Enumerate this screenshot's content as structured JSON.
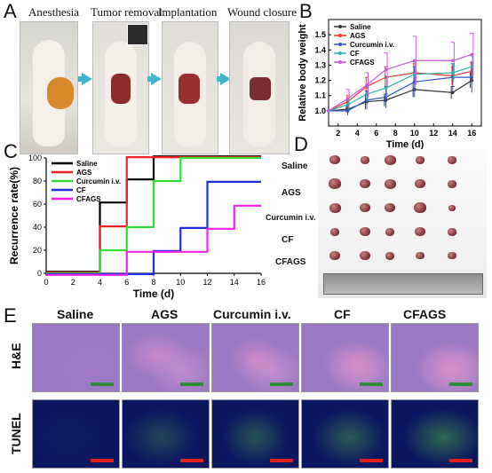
{
  "panels": {
    "a": "A",
    "b": "B",
    "c": "C",
    "d": "D",
    "e": "E"
  },
  "panel_a": {
    "steps": [
      "Anesthesia",
      "Tumor removal",
      "Implantation",
      "Wound closure"
    ]
  },
  "panel_d": {
    "rows": [
      "Saline",
      "AGS",
      "Curcumin i.v.",
      "CF",
      "CFAGS"
    ]
  },
  "panel_e": {
    "columns": [
      "Saline",
      "AGS",
      "Curcumin i.v.",
      "CF",
      "CFAGS"
    ],
    "rows": [
      "H&E",
      "TUNEL"
    ]
  },
  "chart_data": [
    {
      "type": "line",
      "xlabel": "Time (d)",
      "ylabel": "Relative body weight",
      "xlim": [
        1,
        17
      ],
      "ylim": [
        0.9,
        1.6
      ],
      "xticks": [
        2,
        4,
        6,
        8,
        10,
        12,
        14,
        16
      ],
      "yticks": [
        1.0,
        1.1,
        1.2,
        1.3,
        1.4,
        1.5
      ],
      "legend": "top-left",
      "x": [
        1,
        3,
        5,
        7,
        10,
        14,
        16
      ],
      "series": [
        {
          "name": "Saline",
          "color": "#333333",
          "values": [
            1.0,
            1.01,
            1.06,
            1.07,
            1.14,
            1.12,
            1.2
          ],
          "err": [
            0.0,
            0.02,
            0.05,
            0.04,
            0.05,
            0.04,
            0.05
          ]
        },
        {
          "name": "AGS",
          "color": "#e8392c",
          "values": [
            1.0,
            1.06,
            1.16,
            1.22,
            1.25,
            1.23,
            1.26
          ],
          "err": [
            0.0,
            0.04,
            0.06,
            0.07,
            0.06,
            0.06,
            0.06
          ]
        },
        {
          "name": "Curcumin i.v.",
          "color": "#2f56c8",
          "values": [
            1.0,
            1.0,
            1.07,
            1.09,
            1.19,
            1.22,
            1.22
          ],
          "err": [
            0.0,
            0.03,
            0.06,
            0.07,
            0.1,
            0.09,
            0.1
          ]
        },
        {
          "name": "CF",
          "color": "#2bb5a6",
          "values": [
            1.0,
            1.04,
            1.11,
            1.15,
            1.24,
            1.25,
            1.29
          ],
          "err": [
            0.0,
            0.03,
            0.05,
            0.07,
            0.08,
            0.06,
            0.07
          ]
        },
        {
          "name": "CFAGS",
          "color": "#c75bd8",
          "values": [
            1.0,
            1.08,
            1.17,
            1.27,
            1.33,
            1.33,
            1.37
          ],
          "err": [
            0.0,
            0.06,
            0.08,
            0.11,
            0.16,
            0.12,
            0.14
          ]
        }
      ]
    },
    {
      "type": "line",
      "step": true,
      "xlabel": "Time (d)",
      "ylabel": "Recurrence rate(%)",
      "xlim": [
        0,
        16
      ],
      "ylim": [
        0,
        100
      ],
      "xticks": [
        0,
        2,
        4,
        6,
        8,
        10,
        12,
        14,
        16
      ],
      "yticks": [
        0,
        20,
        40,
        60,
        80,
        100
      ],
      "legend": "top-left",
      "series": [
        {
          "name": "Saline",
          "color": "#000000",
          "points": [
            [
              0,
              0
            ],
            [
              4,
              0
            ],
            [
              4,
              60
            ],
            [
              6,
              60
            ],
            [
              6,
              80
            ],
            [
              8,
              80
            ],
            [
              8,
              100
            ],
            [
              16,
              100
            ]
          ]
        },
        {
          "name": "AGS",
          "color": "#ee2222",
          "points": [
            [
              0,
              0
            ],
            [
              4,
              0
            ],
            [
              4,
              40
            ],
            [
              6,
              40
            ],
            [
              6,
              100
            ],
            [
              16,
              100
            ]
          ]
        },
        {
          "name": "Curcumin i.v.",
          "color": "#33dd33",
          "points": [
            [
              0,
              0
            ],
            [
              4,
              0
            ],
            [
              4,
              20
            ],
            [
              6,
              20
            ],
            [
              6,
              40
            ],
            [
              8,
              40
            ],
            [
              8,
              80
            ],
            [
              10,
              80
            ],
            [
              10,
              100
            ],
            [
              16,
              100
            ]
          ]
        },
        {
          "name": "CF",
          "color": "#1f2fdd",
          "points": [
            [
              0,
              0
            ],
            [
              8,
              0
            ],
            [
              8,
              20
            ],
            [
              10,
              20
            ],
            [
              10,
              40
            ],
            [
              12,
              40
            ],
            [
              12,
              80
            ],
            [
              16,
              80
            ]
          ]
        },
        {
          "name": "CFAGS",
          "color": "#ee22ee",
          "points": [
            [
              0,
              0
            ],
            [
              6,
              0
            ],
            [
              6,
              20
            ],
            [
              12,
              20
            ],
            [
              12,
              40
            ],
            [
              14,
              40
            ],
            [
              14,
              60
            ],
            [
              16,
              60
            ]
          ]
        }
      ]
    }
  ]
}
